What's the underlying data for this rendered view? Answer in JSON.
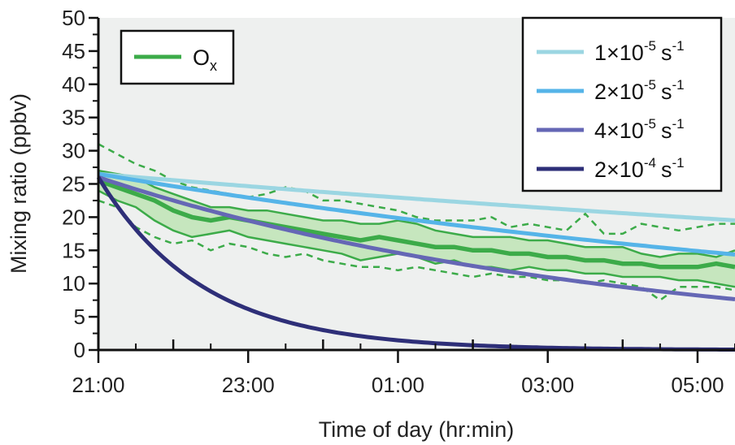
{
  "chart_data": {
    "type": "line",
    "xlabel": "Time of day (hr:min)",
    "ylabel": "Mixing ratio (ppbv)",
    "ylim": [
      0,
      50
    ],
    "xlim_hours": [
      0,
      8.5
    ],
    "x_unit": "hours after 21:00",
    "x_tick_labels": [
      "21:00",
      "23:00",
      "01:00",
      "03:00",
      "05:00"
    ],
    "x_tick_hours": [
      0,
      2,
      4,
      6,
      8
    ],
    "y_ticks": [
      0,
      5,
      10,
      15,
      20,
      25,
      30,
      35,
      40,
      45,
      50
    ],
    "grid": false,
    "background": "#eef0ef",
    "observed": {
      "name": "Ox",
      "label_main": "O",
      "label_sub": "x",
      "color": "#3cab49",
      "fill_color": "#c6e6be",
      "x": [
        0,
        0.25,
        0.5,
        0.75,
        1.0,
        1.25,
        1.5,
        1.75,
        2.0,
        2.25,
        2.5,
        2.75,
        3.0,
        3.25,
        3.5,
        3.75,
        4.0,
        4.25,
        4.5,
        4.75,
        5.0,
        5.25,
        5.5,
        5.75,
        6.0,
        6.25,
        6.5,
        6.75,
        7.0,
        7.25,
        7.5,
        7.75,
        8.0,
        8.25,
        8.5
      ],
      "median": [
        25.5,
        24.5,
        23.5,
        22.5,
        21,
        20,
        19.5,
        20,
        19.5,
        19,
        18.5,
        18,
        17.5,
        17,
        16.5,
        17,
        16.5,
        16,
        15.5,
        15.5,
        15,
        15,
        14.5,
        14.5,
        14,
        14,
        13.5,
        13.5,
        13,
        13,
        12.5,
        12.5,
        12.5,
        13,
        12.5
      ],
      "q25": [
        24,
        22.5,
        21.5,
        19.5,
        18,
        17,
        17.5,
        18,
        17,
        16.5,
        16,
        15.5,
        15,
        14.5,
        13.5,
        14,
        14.5,
        14,
        13,
        13.5,
        12.5,
        12.5,
        12,
        12.5,
        12,
        12,
        11.5,
        11.5,
        11,
        11,
        11,
        10.5,
        10.5,
        10,
        9.5
      ],
      "q75": [
        27,
        26.5,
        26,
        24.5,
        23.5,
        22.5,
        21.5,
        21.5,
        21,
        21,
        20.5,
        20,
        19.5,
        19.5,
        19,
        19,
        19.5,
        19,
        18,
        17.5,
        17,
        17,
        17,
        16.5,
        16.5,
        16,
        15.5,
        15.5,
        15.5,
        14.5,
        14,
        14.5,
        14.5,
        14,
        15
      ],
      "p10": [
        22.5,
        21.5,
        18.5,
        17,
        16,
        16.5,
        15,
        16,
        15.5,
        14.5,
        14,
        14.5,
        13.5,
        13,
        12.5,
        12.5,
        12,
        12.5,
        12,
        11.5,
        11,
        11.5,
        11,
        11,
        10.5,
        10.5,
        10,
        10.5,
        10,
        9.5,
        7.5,
        9.5,
        9.5,
        9.5,
        9
      ],
      "p90": [
        31,
        29.5,
        28,
        27,
        25.5,
        24.5,
        24,
        23.5,
        23,
        23.5,
        24.5,
        24,
        22.5,
        22.5,
        22,
        21.5,
        21,
        20,
        19.5,
        19.5,
        19.5,
        20,
        18.5,
        19,
        18.5,
        18,
        20.5,
        17.5,
        17.5,
        19,
        18.5,
        18,
        18.5,
        19,
        19
      ]
    },
    "series": [
      {
        "name": "1×10^-5 s^-1",
        "label_main": "1×10",
        "label_exp": "-5",
        "label_unit": "s",
        "label_unit_exp": "-1",
        "k_per_s": 1e-05,
        "initial": 26.5,
        "color": "#9bd6e2"
      },
      {
        "name": "2×10^-5 s^-1",
        "label_main": "2×10",
        "label_exp": "-5",
        "label_unit": "s",
        "label_unit_exp": "-1",
        "k_per_s": 2e-05,
        "initial": 26.5,
        "color": "#55b4e8"
      },
      {
        "name": "4×10^-5 s^-1",
        "label_main": "4×10",
        "label_exp": "-5",
        "label_unit": "s",
        "label_unit_exp": "-1",
        "k_per_s": 4e-05,
        "initial": 26.0,
        "color": "#6567b5"
      },
      {
        "name": "2×10^-4 s^-1",
        "label_main": "2×10",
        "label_exp": "-4",
        "label_unit": "s",
        "label_unit_exp": "-1",
        "k_per_s": 0.0002,
        "initial": 26.0,
        "color": "#2e2f78"
      }
    ]
  }
}
